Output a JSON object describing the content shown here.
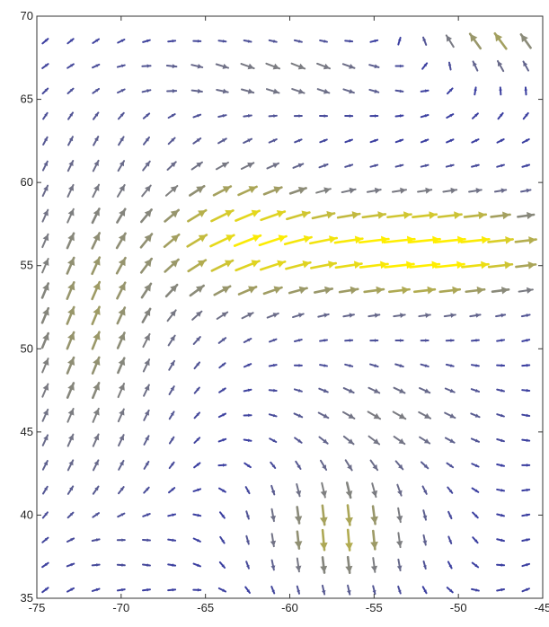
{
  "chart_data": {
    "type": "quiver",
    "title": "",
    "xlabel": "",
    "ylabel": "",
    "xlim": [
      -75,
      -45
    ],
    "ylim": [
      35,
      70
    ],
    "x_ticks": [
      -75,
      -70,
      -65,
      -60,
      -55,
      -50,
      -45
    ],
    "y_ticks": [
      35,
      40,
      45,
      50,
      55,
      60,
      65,
      70
    ],
    "x_tick_labels": [
      "-75",
      "-70",
      "-65",
      "-60",
      "-55",
      "-50",
      "-45"
    ],
    "y_tick_labels": [
      "35",
      "40",
      "45",
      "50",
      "55",
      "60",
      "65",
      "70"
    ],
    "grid": false,
    "legend": "none",
    "colormap": {
      "low": "#3b3fa0",
      "mid": "#8a8a7a",
      "high": "#ffee00"
    },
    "vector_field": {
      "description": "Wind-like vectors on a regular grid. Low-magnitude vectors are blue; high-magnitude vectors are yellow.",
      "x_start": -74.5,
      "x_step": 1.5,
      "x_count": 20,
      "y_start": 35.5,
      "y_step": 1.5,
      "y_count": 23
    }
  }
}
